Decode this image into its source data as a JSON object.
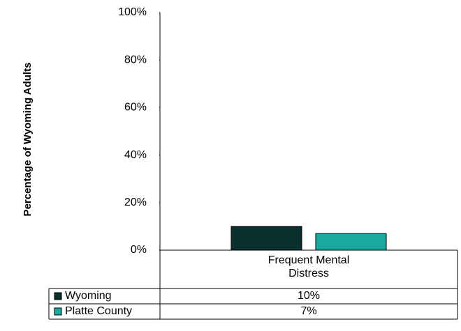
{
  "chart_data": {
    "type": "bar",
    "y_axis_label": "Percentage of Wyoming Adults",
    "categories": [
      "Frequent Mental Distress"
    ],
    "series": [
      {
        "name": "Wyoming",
        "color": "#0b302d",
        "values": [
          10
        ],
        "value_labels": [
          "10%"
        ]
      },
      {
        "name": "Platte County",
        "color": "#1aa99c",
        "values": [
          7
        ],
        "value_labels": [
          "7%"
        ]
      }
    ],
    "ylim": [
      0,
      100
    ],
    "yticks": [
      {
        "value": 0,
        "label": "0%"
      },
      {
        "value": 20,
        "label": "20%"
      },
      {
        "value": 40,
        "label": "40%"
      },
      {
        "value": 60,
        "label": "60%"
      },
      {
        "value": 80,
        "label": "80%"
      },
      {
        "value": 100,
        "label": "100%"
      }
    ],
    "grid": false
  }
}
